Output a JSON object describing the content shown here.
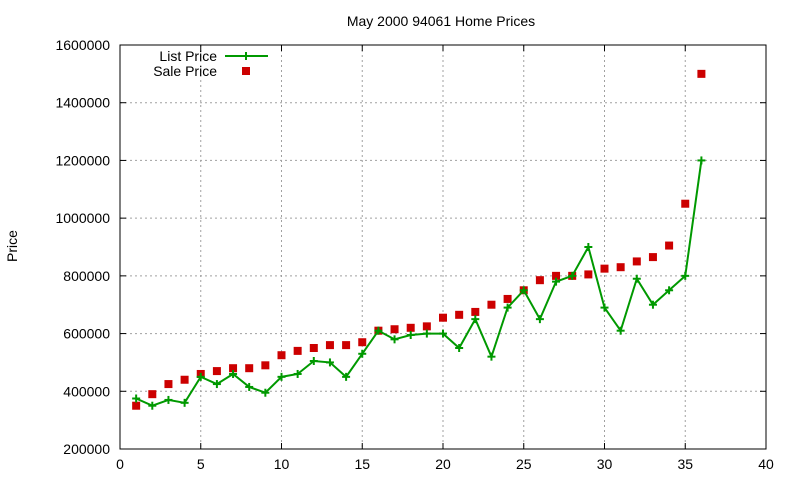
{
  "chart_data": {
    "type": "line",
    "title": "May 2000 94061 Home Prices",
    "xlabel": "",
    "ylabel": "Price",
    "xlim": [
      0,
      40
    ],
    "ylim": [
      200000,
      1600000
    ],
    "x_ticks": [
      "0",
      "5",
      "10",
      "15",
      "20",
      "25",
      "30",
      "35",
      "40"
    ],
    "y_ticks": [
      "200000",
      "400000",
      "600000",
      "800000",
      "1000000",
      "1200000",
      "1400000",
      "1600000"
    ],
    "grid": true,
    "legend_position": "top-left",
    "series": [
      {
        "name": "List Price",
        "style": "line-with-plus-markers",
        "color": "#009900",
        "x": [
          1,
          2,
          3,
          4,
          5,
          6,
          7,
          8,
          9,
          10,
          11,
          12,
          13,
          14,
          15,
          16,
          17,
          18,
          19,
          20,
          21,
          22,
          23,
          24,
          25,
          26,
          27,
          28,
          29,
          30,
          31,
          32,
          33,
          34,
          35,
          36
        ],
        "y": [
          375000,
          350000,
          370000,
          360000,
          450000,
          425000,
          460000,
          415000,
          395000,
          450000,
          460000,
          505000,
          500000,
          450000,
          530000,
          610000,
          580000,
          595000,
          600000,
          600000,
          550000,
          650000,
          520000,
          690000,
          750000,
          650000,
          780000,
          800000,
          900000,
          690000,
          610000,
          790000,
          700000,
          750000,
          800000,
          1200000
        ]
      },
      {
        "name": "Sale Price",
        "style": "square-markers",
        "color": "#cc0000",
        "x": [
          1,
          2,
          3,
          4,
          5,
          6,
          7,
          8,
          9,
          10,
          11,
          12,
          13,
          14,
          15,
          16,
          17,
          18,
          19,
          20,
          21,
          22,
          23,
          24,
          25,
          26,
          27,
          28,
          29,
          30,
          31,
          32,
          33,
          34,
          35,
          36
        ],
        "y": [
          350000,
          390000,
          425000,
          440000,
          460000,
          470000,
          480000,
          480000,
          490000,
          525000,
          540000,
          550000,
          560000,
          560000,
          570000,
          610000,
          615000,
          620000,
          625000,
          655000,
          665000,
          675000,
          700000,
          720000,
          750000,
          785000,
          800000,
          800000,
          805000,
          825000,
          830000,
          850000,
          865000,
          905000,
          1050000,
          1500000
        ]
      }
    ]
  }
}
